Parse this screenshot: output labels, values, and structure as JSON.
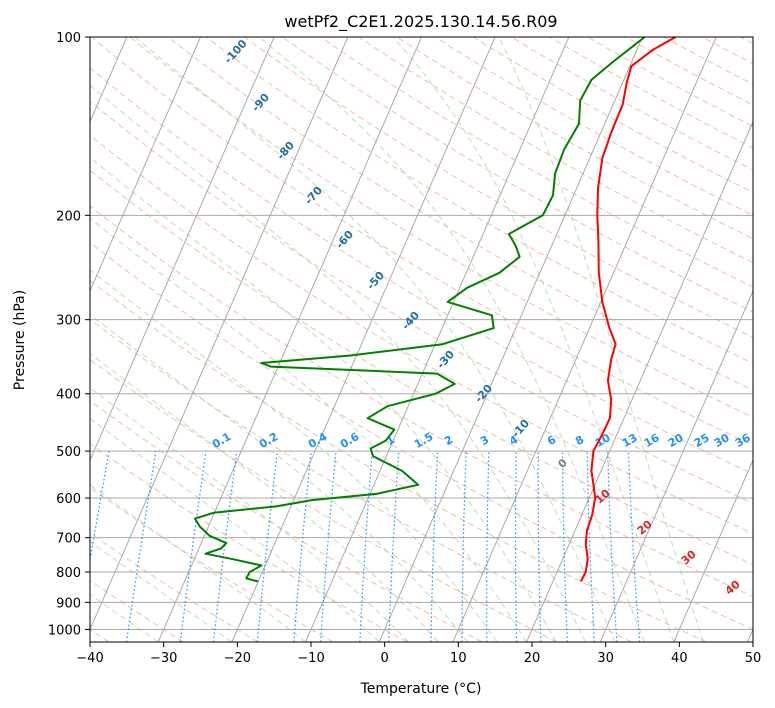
{
  "chart_data": {
    "type": "line",
    "title": "wetPf2_C2E1.2025.130.14.56.R09",
    "xlabel": "Temperature (°C)",
    "ylabel": "Pressure (hPa)",
    "xlim": [
      -40,
      50
    ],
    "ylim": [
      1050,
      100
    ],
    "y_scale": "log",
    "grid": true,
    "x_ticks": [
      "−40",
      "−30",
      "−20",
      "−10",
      "0",
      "10",
      "20",
      "30",
      "40",
      "50"
    ],
    "y_ticks": [
      "100",
      "200",
      "300",
      "400",
      "500",
      "600",
      "700",
      "800",
      "900",
      "1000"
    ],
    "series": [
      {
        "color": "#ff0000",
        "points": [
          {
            "p": 830,
            "t": 23.8
          },
          {
            "p": 800,
            "t": 23.9
          },
          {
            "p": 760,
            "t": 23.4
          },
          {
            "p": 720,
            "t": 22.3
          },
          {
            "p": 680,
            "t": 21.6
          },
          {
            "p": 640,
            "t": 21.4
          },
          {
            "p": 600,
            "t": 20.8
          },
          {
            "p": 570,
            "t": 19.8
          },
          {
            "p": 540,
            "t": 18.7
          },
          {
            "p": 500,
            "t": 17.8
          },
          {
            "p": 470,
            "t": 18.0
          },
          {
            "p": 440,
            "t": 18.1
          },
          {
            "p": 410,
            "t": 17.2
          },
          {
            "p": 380,
            "t": 15.6
          },
          {
            "p": 350,
            "t": 14.8
          },
          {
            "p": 330,
            "t": 14.5
          },
          {
            "p": 310,
            "t": 12.7
          },
          {
            "p": 280,
            "t": 10.2
          },
          {
            "p": 250,
            "t": 8.0
          },
          {
            "p": 220,
            "t": 6.0
          },
          {
            "p": 200,
            "t": 4.4
          },
          {
            "p": 180,
            "t": 2.9
          },
          {
            "p": 160,
            "t": 1.7
          },
          {
            "p": 145,
            "t": 1.4
          },
          {
            "p": 130,
            "t": 1.3
          },
          {
            "p": 120,
            "t": 0.6
          },
          {
            "p": 112,
            "t": 0.2
          },
          {
            "p": 105,
            "t": 2.2
          },
          {
            "p": 100,
            "t": 4.5
          }
        ]
      },
      {
        "color": "#008000",
        "points": [
          {
            "p": 830,
            "t": -20.0
          },
          {
            "p": 820,
            "t": -21.8
          },
          {
            "p": 800,
            "t": -21.7
          },
          {
            "p": 780,
            "t": -20.5
          },
          {
            "p": 760,
            "t": -25.0
          },
          {
            "p": 745,
            "t": -28.8
          },
          {
            "p": 730,
            "t": -27.0
          },
          {
            "p": 715,
            "t": -26.6
          },
          {
            "p": 695,
            "t": -29.3
          },
          {
            "p": 670,
            "t": -31.2
          },
          {
            "p": 650,
            "t": -32.3
          },
          {
            "p": 635,
            "t": -30.0
          },
          {
            "p": 620,
            "t": -22.0
          },
          {
            "p": 605,
            "t": -17.5
          },
          {
            "p": 590,
            "t": -9.0
          },
          {
            "p": 570,
            "t": -4.0
          },
          {
            "p": 540,
            "t": -7.0
          },
          {
            "p": 510,
            "t": -11.8
          },
          {
            "p": 495,
            "t": -12.6
          },
          {
            "p": 480,
            "t": -11.0
          },
          {
            "p": 460,
            "t": -10.5
          },
          {
            "p": 440,
            "t": -14.8
          },
          {
            "p": 420,
            "t": -12.8
          },
          {
            "p": 400,
            "t": -7.0
          },
          {
            "p": 385,
            "t": -5.0
          },
          {
            "p": 370,
            "t": -8.0
          },
          {
            "p": 360,
            "t": -31.0
          },
          {
            "p": 355,
            "t": -32.5
          },
          {
            "p": 345,
            "t": -21.0
          },
          {
            "p": 330,
            "t": -9.0
          },
          {
            "p": 310,
            "t": -3.0
          },
          {
            "p": 295,
            "t": -4.0
          },
          {
            "p": 280,
            "t": -10.8
          },
          {
            "p": 265,
            "t": -9.0
          },
          {
            "p": 250,
            "t": -5.5
          },
          {
            "p": 235,
            "t": -3.7
          },
          {
            "p": 225,
            "t": -4.9
          },
          {
            "p": 215,
            "t": -6.5
          },
          {
            "p": 200,
            "t": -3.0
          },
          {
            "p": 185,
            "t": -2.8
          },
          {
            "p": 170,
            "t": -3.8
          },
          {
            "p": 155,
            "t": -4.0
          },
          {
            "p": 140,
            "t": -3.5
          },
          {
            "p": 128,
            "t": -4.7
          },
          {
            "p": 118,
            "t": -4.4
          },
          {
            "p": 110,
            "t": -2.5
          },
          {
            "p": 100,
            "t": 0.3
          }
        ]
      }
    ],
    "dry_adiabat_labels": [
      "-100",
      "-90",
      "-80",
      "-70",
      "-60",
      "-50",
      "-40",
      "-30",
      "-20",
      "-10"
    ],
    "mixing_ratio_labels": [
      "0.1",
      "0.2",
      "0.4",
      "0.6",
      "1",
      "1.5",
      "2",
      "3",
      "4",
      "6",
      "8",
      "10",
      "13",
      "16",
      "20",
      "25",
      "30",
      "36"
    ],
    "moist_adiabat_labels": [
      "0",
      "10",
      "20",
      "30",
      "40"
    ],
    "colors": {
      "temperature": "#ff0000",
      "dewpoint": "#008000",
      "isotherm": "#a9a9a9",
      "dry_adiabat": "#f4a582",
      "moist_adiabat": "#a6d8a6",
      "mixing_ratio": "#1e90ff",
      "dry_adiabat_label": "#1f6fa8",
      "moist_adiabat_label": "#d62728"
    }
  }
}
